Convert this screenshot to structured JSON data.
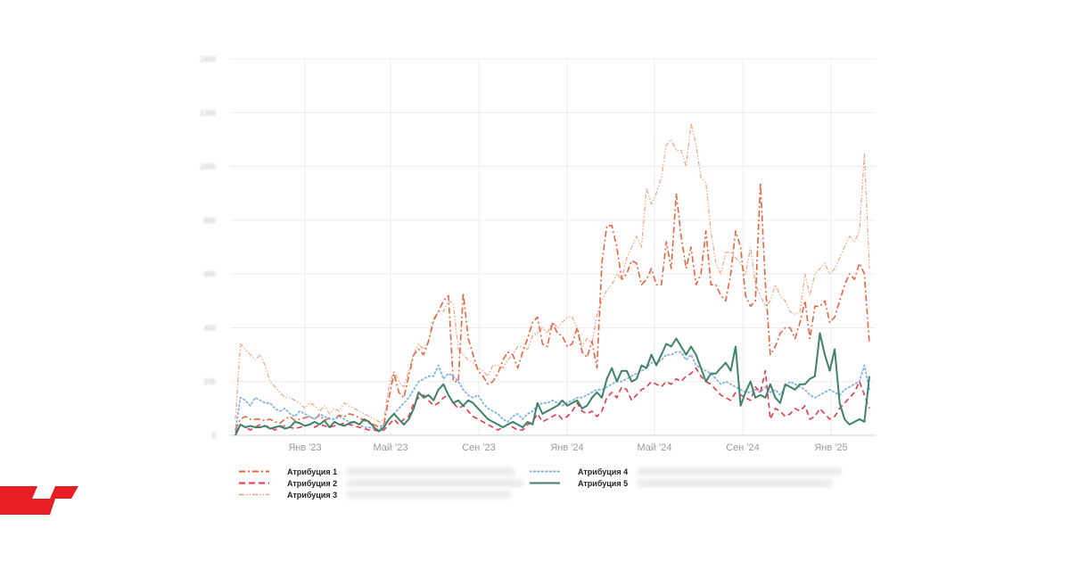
{
  "chart_data": {
    "type": "line",
    "xlabel": "",
    "ylabel": "",
    "ylim": [
      0,
      1400
    ],
    "ytick_labels": [
      "0",
      "200",
      "400",
      "600",
      "800",
      "1000",
      "1200",
      "1400"
    ],
    "xtick_labels": [
      "Янв '23",
      "Май '23",
      "Сен '23",
      "Янв '24",
      "Май '24",
      "Сен '24",
      "Янв '25"
    ],
    "legend_position": "bottom",
    "grid": true,
    "series": [
      {
        "name": "Атрибуция 1",
        "color": "#e8643f",
        "values": [
          20,
          60,
          70,
          60,
          60,
          60,
          55,
          60,
          50,
          45,
          60,
          70,
          55,
          60,
          65,
          70,
          60,
          75,
          55,
          65,
          60,
          75,
          70,
          80,
          75,
          65,
          55,
          45,
          40,
          30,
          40,
          140,
          230,
          160,
          140,
          220,
          300,
          320,
          300,
          350,
          430,
          460,
          500,
          520,
          200,
          200,
          530,
          360,
          300,
          240,
          220,
          190,
          200,
          230,
          280,
          310,
          300,
          250,
          310,
          360,
          420,
          440,
          340,
          330,
          420,
          380,
          370,
          330,
          340,
          400,
          310,
          290,
          350,
          250,
          640,
          780,
          780,
          700,
          580,
          600,
          650,
          640,
          560,
          580,
          620,
          560,
          560,
          720,
          620,
          900,
          740,
          620,
          700,
          560,
          600,
          760,
          560,
          560,
          520,
          500,
          600,
          760,
          700,
          520,
          480,
          500,
          940,
          560,
          300,
          330,
          380,
          400,
          400,
          360,
          420,
          500,
          360,
          480,
          480,
          500,
          420,
          440,
          500,
          560,
          600,
          580,
          640,
          600,
          340
        ]
      },
      {
        "name": "Атрибуция 2",
        "color": "#e8364a",
        "values": [
          10,
          40,
          30,
          20,
          30,
          40,
          35,
          30,
          20,
          30,
          35,
          30,
          25,
          30,
          35,
          40,
          30,
          40,
          35,
          30,
          35,
          40,
          45,
          40,
          35,
          30,
          25,
          20,
          20,
          15,
          20,
          40,
          60,
          40,
          60,
          70,
          120,
          140,
          150,
          130,
          110,
          120,
          140,
          150,
          120,
          100,
          110,
          90,
          70,
          60,
          50,
          40,
          30,
          20,
          30,
          40,
          30,
          20,
          20,
          40,
          50,
          80,
          50,
          60,
          70,
          80,
          60,
          70,
          90,
          120,
          90,
          80,
          90,
          70,
          90,
          140,
          160,
          140,
          180,
          170,
          130,
          150,
          170,
          180,
          200,
          190,
          180,
          200,
          190,
          210,
          200,
          220,
          230,
          250,
          220,
          200,
          190,
          170,
          150,
          140,
          130,
          160,
          150,
          140,
          130,
          180,
          160,
          240,
          60,
          100,
          90,
          70,
          80,
          100,
          90,
          110,
          60,
          70,
          100,
          80,
          60,
          70,
          100,
          120,
          140,
          160,
          200,
          150,
          100
        ]
      },
      {
        "name": "Атрибуция 3",
        "color": "#f4a27e",
        "values": [
          60,
          340,
          320,
          300,
          280,
          300,
          260,
          200,
          180,
          160,
          140,
          140,
          130,
          120,
          100,
          120,
          110,
          90,
          110,
          80,
          100,
          90,
          120,
          110,
          100,
          90,
          80,
          70,
          60,
          50,
          60,
          180,
          240,
          200,
          180,
          240,
          300,
          340,
          320,
          350,
          420,
          460,
          460,
          500,
          490,
          320,
          300,
          280,
          270,
          250,
          240,
          220,
          260,
          260,
          250,
          280,
          300,
          330,
          330,
          320,
          370,
          380,
          400,
          380,
          420,
          400,
          420,
          440,
          440,
          400,
          330,
          360,
          340,
          450,
          500,
          540,
          560,
          600,
          580,
          660,
          700,
          740,
          700,
          920,
          860,
          900,
          960,
          1080,
          1100,
          1060,
          1060,
          1000,
          1160,
          1080,
          960,
          940,
          760,
          640,
          600,
          680,
          680,
          660,
          640,
          600,
          700,
          560,
          520,
          480,
          500,
          560,
          520,
          500,
          460,
          450,
          460,
          600,
          520,
          600,
          620,
          640,
          600,
          620,
          660,
          700,
          740,
          720,
          760,
          1050,
          620
        ]
      },
      {
        "name": "Атрибуция 4",
        "color": "#7fb2e5",
        "values": [
          20,
          140,
          130,
          110,
          140,
          130,
          120,
          120,
          100,
          90,
          100,
          80,
          70,
          90,
          80,
          70,
          60,
          80,
          70,
          60,
          60,
          70,
          60,
          50,
          50,
          40,
          30,
          30,
          25,
          20,
          40,
          60,
          80,
          100,
          120,
          140,
          170,
          200,
          210,
          220,
          220,
          260,
          210,
          230,
          220,
          200,
          170,
          150,
          140,
          150,
          120,
          100,
          90,
          80,
          60,
          50,
          70,
          80,
          60,
          80,
          90,
          110,
          120,
          120,
          130,
          120,
          110,
          120,
          130,
          140,
          140,
          150,
          160,
          170,
          170,
          180,
          190,
          200,
          200,
          210,
          220,
          230,
          240,
          250,
          270,
          270,
          280,
          300,
          300,
          310,
          310,
          280,
          300,
          260,
          250,
          240,
          230,
          210,
          190,
          200,
          190,
          180,
          170,
          160,
          160,
          170,
          160,
          180,
          160,
          170,
          150,
          180,
          200,
          190,
          180,
          170,
          150,
          140,
          150,
          160,
          170,
          160,
          150,
          170,
          180,
          190,
          200,
          260,
          170
        ]
      },
      {
        "name": "Атрибуция 5",
        "color": "#3f8268",
        "values": [
          0,
          40,
          30,
          35,
          30,
          30,
          35,
          25,
          30,
          35,
          25,
          30,
          50,
          45,
          35,
          40,
          50,
          40,
          55,
          30,
          50,
          40,
          35,
          45,
          50,
          40,
          60,
          50,
          30,
          15,
          30,
          60,
          80,
          60,
          40,
          60,
          100,
          160,
          140,
          150,
          130,
          170,
          190,
          150,
          120,
          130,
          110,
          130,
          120,
          100,
          80,
          60,
          50,
          40,
          30,
          40,
          50,
          40,
          30,
          50,
          40,
          120,
          80,
          90,
          100,
          110,
          130,
          110,
          120,
          130,
          100,
          110,
          140,
          160,
          140,
          210,
          250,
          200,
          240,
          240,
          200,
          210,
          260,
          250,
          300,
          260,
          300,
          340,
          330,
          360,
          330,
          300,
          330,
          300,
          250,
          200,
          230,
          230,
          250,
          270,
          240,
          330,
          110,
          160,
          200,
          140,
          150,
          140,
          190,
          140,
          120,
          190,
          180,
          170,
          190,
          190,
          210,
          220,
          380,
          300,
          240,
          320,
          120,
          60,
          40,
          50,
          60,
          50,
          220
        ]
      }
    ]
  }
}
